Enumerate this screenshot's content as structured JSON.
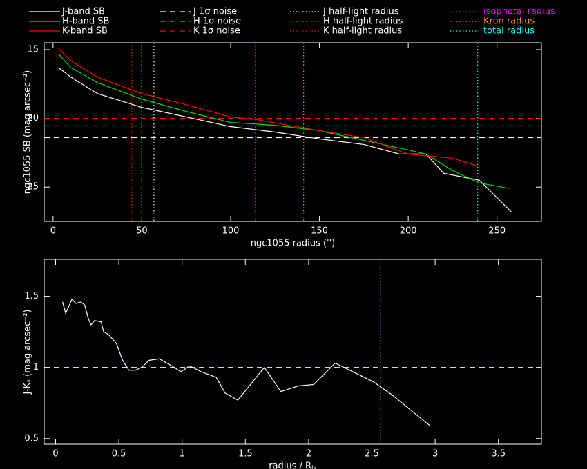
{
  "chart_data": [
    {
      "type": "line",
      "xlabel": "ngc1055 radius ('')",
      "ylabel": "ngc1055 SB (mag arcsec⁻²)",
      "xlim": [
        -5,
        275
      ],
      "ylim": [
        27.5,
        14.5
      ],
      "xticks": [
        0,
        50,
        100,
        150,
        200,
        250
      ],
      "yticks": [
        15,
        20,
        25
      ],
      "series": [
        {
          "name": "J-band SB",
          "color": "#ffffff",
          "style": "solid",
          "x": [
            3,
            10,
            25,
            50,
            75,
            100,
            125,
            150,
            175,
            195,
            210,
            220,
            240,
            258
          ],
          "values": [
            16.3,
            17.0,
            18.2,
            19.2,
            19.9,
            20.6,
            21.0,
            21.5,
            21.9,
            22.6,
            22.6,
            24.0,
            24.5,
            26.8
          ]
        },
        {
          "name": "H-band SB",
          "color": "#00e000",
          "style": "solid",
          "x": [
            3,
            10,
            25,
            50,
            75,
            100,
            125,
            150,
            175,
            200,
            210,
            225,
            240,
            257
          ],
          "values": [
            15.3,
            16.3,
            17.4,
            18.6,
            19.5,
            20.3,
            20.5,
            20.9,
            21.6,
            22.3,
            22.6,
            23.8,
            24.7,
            25.1
          ]
        },
        {
          "name": "K-band SB",
          "color": "#ff0000",
          "style": "solid",
          "x": [
            3,
            10,
            25,
            50,
            75,
            100,
            115,
            150,
            175,
            200,
            225,
            240
          ],
          "values": [
            14.9,
            15.8,
            17.0,
            18.2,
            19.0,
            19.9,
            20.1,
            20.9,
            21.4,
            22.6,
            22.9,
            23.5
          ]
        }
      ],
      "hlines": [
        {
          "name": "J 1σ noise",
          "color": "#ffffff",
          "style": "dashed",
          "value": 21.4
        },
        {
          "name": "H 1σ noise",
          "color": "#00e000",
          "style": "dashed",
          "value": 20.55
        },
        {
          "name": "K 1σ noise",
          "color": "#ff0000",
          "style": "dashed",
          "value": 20.0
        }
      ],
      "vlines": [
        {
          "name": "J half-light radius",
          "color": "#ffffff",
          "style": "dotted",
          "value": 56.8
        },
        {
          "name": "H half-light radius",
          "color": "#00e000",
          "style": "dotted",
          "value": 49.8
        },
        {
          "name": "K half-light radius",
          "color": "#ff0000",
          "style": "dotted",
          "value": 44.3
        },
        {
          "name": "isophotal radius",
          "color": "#ff00ff",
          "label_color": "#ff00ff",
          "style": "dotted",
          "value": 113.9
        },
        {
          "name": "Kron radius",
          "color": "#ff9020",
          "label_color": "#ff9020",
          "style": "dotted",
          "value": 141.1
        },
        {
          "name": "total radius",
          "color": "#00ffff",
          "label_color": "#00ffff",
          "style": "dotted",
          "value": 239.1
        }
      ]
    },
    {
      "type": "line",
      "xlabel": "radius / Rⱼₑ",
      "ylabel": "J-Kₛ (mag arcsec⁻²)",
      "xlim": [
        -0.09,
        3.84
      ],
      "ylim": [
        0.46,
        1.76
      ],
      "xticks": [
        0,
        0.5,
        1,
        1.5,
        2,
        2.5,
        3,
        3.5
      ],
      "yticks": [
        0.5,
        1,
        1.5
      ],
      "series": [
        {
          "color": "#ffffff",
          "style": "solid",
          "x": [
            0.055,
            0.08,
            0.13,
            0.16,
            0.2,
            0.23,
            0.26,
            0.28,
            0.31,
            0.36,
            0.38,
            0.42,
            0.48,
            0.53,
            0.58,
            0.63,
            0.68,
            0.74,
            0.82,
            0.92,
            0.99,
            1.06,
            1.15,
            1.27,
            1.34,
            1.44,
            1.65,
            1.78,
            1.92,
            2.04,
            2.21,
            2.51,
            2.67,
            2.82,
            2.96
          ],
          "values": [
            1.46,
            1.38,
            1.48,
            1.45,
            1.46,
            1.44,
            1.34,
            1.3,
            1.33,
            1.32,
            1.25,
            1.23,
            1.17,
            1.05,
            0.98,
            0.98,
            1.0,
            1.05,
            1.06,
            1.01,
            0.97,
            1.01,
            0.97,
            0.93,
            0.82,
            0.77,
            1.0,
            0.83,
            0.87,
            0.88,
            1.03,
            0.9,
            0.8,
            0.69,
            0.59
          ]
        }
      ],
      "hlines": [
        {
          "color": "#ffff99",
          "style": "dashed",
          "value": 1
        }
      ],
      "vlines": [
        {
          "color": "#ff00ff",
          "style": "dotted",
          "value": 2.568
        }
      ]
    }
  ]
}
